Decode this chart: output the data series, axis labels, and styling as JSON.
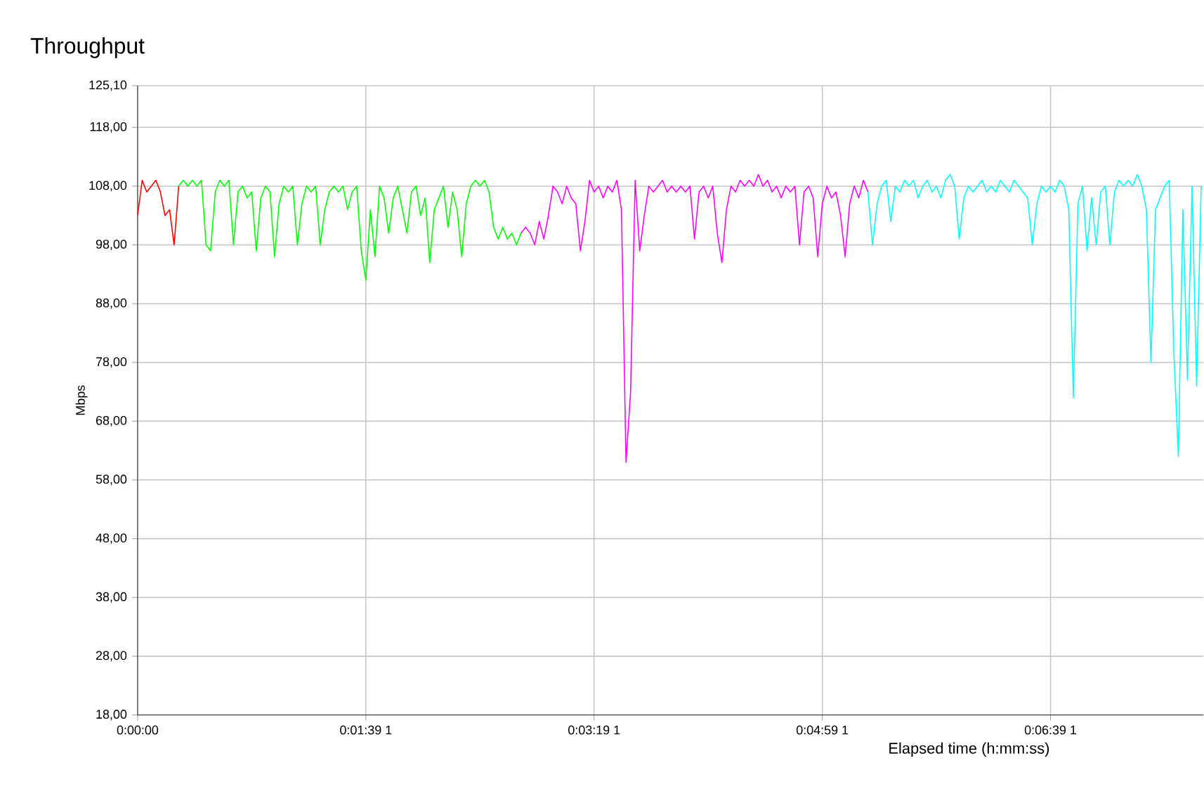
{
  "chart_data": {
    "type": "line",
    "title": "Throughput",
    "xlabel": "Elapsed time (h:mm:ss)",
    "ylabel": "Mbps",
    "categories": [
      "0:00:00",
      null,
      null,
      null,
      null,
      null,
      null,
      null,
      null,
      null,
      null,
      null,
      null,
      null,
      null,
      null,
      null,
      null,
      null,
      null,
      null,
      null,
      null,
      null,
      null,
      null,
      null,
      null,
      null,
      null,
      null,
      null,
      null,
      null,
      null,
      null,
      null,
      null,
      null,
      null,
      null,
      null,
      null,
      null,
      null,
      null,
      null,
      null,
      null,
      null,
      "0:01:39 1",
      null,
      null,
      null,
      null,
      null,
      null,
      null,
      null,
      null,
      null,
      null,
      null,
      null,
      null,
      null,
      null,
      null,
      null,
      null,
      null,
      null,
      null,
      null,
      null,
      null,
      null,
      null,
      null,
      null,
      null,
      null,
      null,
      null,
      null,
      null,
      null,
      null,
      null,
      null,
      null,
      null,
      null,
      null,
      null,
      null,
      null,
      null,
      null,
      null,
      "0:03:19 1",
      null,
      null,
      null,
      null,
      null,
      null,
      null,
      null,
      null,
      null,
      null,
      null,
      null,
      null,
      null,
      null,
      null,
      null,
      null,
      null,
      null,
      null,
      null,
      null,
      null,
      null,
      null,
      null,
      null,
      null,
      null,
      null,
      null,
      null,
      null,
      null,
      null,
      null,
      null,
      null,
      null,
      null,
      null,
      null,
      null,
      null,
      null,
      null,
      null,
      "0:04:59 1",
      null,
      null,
      null,
      null,
      null,
      null,
      null,
      null,
      null,
      null,
      null,
      null,
      null,
      null,
      null,
      null,
      null,
      null,
      null,
      null,
      null,
      null,
      null,
      null,
      null,
      null,
      null,
      null,
      null,
      null,
      null,
      null,
      null,
      null,
      null,
      null,
      null,
      null,
      null,
      null,
      null,
      null,
      null,
      null,
      null,
      null,
      null,
      null,
      null,
      "0:06:39 1",
      null,
      null,
      null,
      null,
      null,
      null,
      null,
      null,
      null,
      null,
      null,
      null,
      null,
      null,
      null,
      null,
      null,
      null,
      null,
      null,
      null,
      null,
      null,
      null,
      null,
      null,
      null,
      null,
      null,
      null,
      null,
      null,
      null
    ],
    "ylim": [
      18,
      125.1
    ],
    "yticks": [
      {
        "value": 18,
        "label": "18,00"
      },
      {
        "value": 28,
        "label": "28,00"
      },
      {
        "value": 38,
        "label": "38,00"
      },
      {
        "value": 48,
        "label": "48,00"
      },
      {
        "value": 58,
        "label": "58,00"
      },
      {
        "value": 68,
        "label": "68,00"
      },
      {
        "value": 78,
        "label": "78,00"
      },
      {
        "value": 88,
        "label": "88,00"
      },
      {
        "value": 98,
        "label": "98,00"
      },
      {
        "value": 108,
        "label": "108,00"
      },
      {
        "value": 118,
        "label": "118,00"
      },
      {
        "value": 125.1,
        "label": "125,10"
      }
    ],
    "grid": true,
    "series": [
      {
        "color": "#ff0000",
        "values": [
          103,
          109,
          107,
          108,
          109,
          107,
          103,
          104,
          98,
          108,
          null,
          null,
          null,
          null,
          null,
          null,
          null,
          null,
          null,
          null,
          null,
          null,
          null,
          null,
          null,
          null,
          null,
          null,
          null,
          null,
          null,
          null,
          null,
          null,
          null,
          null,
          null,
          null,
          null,
          null,
          null,
          null,
          null,
          null,
          null,
          null,
          null,
          null,
          null,
          null,
          null,
          null,
          null,
          null,
          null,
          null,
          null,
          null,
          null,
          null,
          null,
          null,
          null,
          null,
          null,
          null,
          null,
          null,
          null,
          null,
          null,
          null,
          null,
          null,
          null,
          null,
          null,
          null,
          null,
          null,
          null,
          null,
          null,
          null,
          null,
          null,
          null,
          null,
          null,
          null,
          null,
          null,
          null,
          null,
          null,
          null,
          null,
          null,
          null,
          null,
          null,
          null,
          null,
          null,
          null,
          null,
          null,
          null,
          null,
          null,
          null,
          null,
          null,
          null,
          null,
          null,
          null,
          null,
          null,
          null,
          null,
          null,
          null,
          null,
          null,
          null,
          null,
          null,
          null,
          null,
          null,
          null,
          null,
          null,
          null,
          null,
          null,
          null,
          null,
          null,
          null,
          null,
          null,
          null,
          null,
          null,
          null,
          null,
          null,
          null,
          null,
          null,
          null,
          null,
          null,
          null,
          null,
          null,
          null,
          null,
          null,
          null,
          null,
          null,
          null,
          null,
          null,
          null,
          null,
          null,
          null,
          null,
          null,
          null,
          null,
          null,
          null,
          null,
          null,
          null,
          null,
          null,
          null,
          null,
          null,
          null,
          null,
          null,
          null,
          null,
          null,
          null,
          null,
          null,
          null,
          null,
          null,
          null,
          null,
          null,
          null,
          null,
          null,
          null,
          null,
          null,
          null,
          null,
          null,
          null,
          null,
          null,
          null,
          null,
          null,
          null,
          null,
          null,
          null,
          null,
          null,
          null,
          null,
          null,
          null,
          null,
          null,
          null,
          null,
          null,
          null,
          null,
          null,
          null
        ]
      },
      {
        "color": "#00ff00",
        "values": [
          null,
          null,
          null,
          null,
          null,
          null,
          null,
          null,
          null,
          108,
          109,
          108,
          109,
          108,
          109,
          98,
          97,
          107,
          109,
          108,
          109,
          98,
          107,
          108,
          106,
          107,
          97,
          106,
          108,
          107,
          96,
          105,
          108,
          107,
          108,
          98,
          105,
          108,
          107,
          108,
          98,
          104,
          107,
          108,
          107,
          108,
          104,
          107,
          108,
          97,
          92,
          104,
          96,
          108,
          106,
          100,
          106,
          108,
          104,
          100,
          107,
          108,
          103,
          106,
          95,
          104,
          106,
          108,
          101,
          107,
          104,
          96,
          105,
          108,
          109,
          108,
          109,
          107,
          101,
          99,
          101,
          99,
          100,
          98,
          100,
          null,
          null,
          null,
          null,
          null,
          null,
          null,
          null,
          null,
          null,
          null,
          null,
          null,
          null,
          null,
          null,
          null,
          null,
          null,
          null,
          null,
          null,
          null,
          null,
          null,
          null,
          null,
          null,
          null,
          null,
          null,
          null,
          null,
          null,
          null,
          null,
          null,
          null,
          null,
          null,
          null,
          null,
          null,
          null,
          null,
          null,
          null,
          null,
          null,
          null,
          null,
          null,
          null,
          null,
          null,
          null,
          null,
          null,
          null,
          null,
          null,
          null,
          null,
          null,
          null,
          null,
          null,
          null,
          null,
          null,
          null,
          null,
          null,
          null,
          null,
          null,
          null,
          null,
          null,
          null,
          null,
          null,
          null,
          null,
          null,
          null,
          null,
          null,
          null,
          null,
          null,
          null,
          null,
          null,
          null,
          null,
          null,
          null,
          null,
          null,
          null,
          null,
          null,
          null,
          null,
          null,
          null,
          null,
          null,
          null,
          null,
          null,
          null,
          null,
          null,
          null,
          null,
          null,
          null,
          null,
          null,
          null,
          null,
          null,
          null,
          null,
          null,
          null,
          null,
          null,
          null,
          null,
          null,
          null,
          null,
          null,
          null,
          null,
          null,
          null,
          null,
          null,
          null,
          null,
          null,
          null,
          null,
          null,
          null
        ]
      },
      {
        "color": "#ff00ff",
        "values": [
          null,
          null,
          null,
          null,
          null,
          null,
          null,
          null,
          null,
          null,
          null,
          null,
          null,
          null,
          null,
          null,
          null,
          null,
          null,
          null,
          null,
          null,
          null,
          null,
          null,
          null,
          null,
          null,
          null,
          null,
          null,
          null,
          null,
          null,
          null,
          null,
          null,
          null,
          null,
          null,
          null,
          null,
          null,
          null,
          null,
          null,
          null,
          null,
          null,
          null,
          null,
          null,
          null,
          null,
          null,
          null,
          null,
          null,
          null,
          null,
          null,
          null,
          null,
          null,
          null,
          null,
          null,
          null,
          null,
          null,
          null,
          null,
          null,
          null,
          null,
          null,
          null,
          null,
          null,
          null,
          null,
          null,
          null,
          null,
          100,
          101,
          100,
          98,
          102,
          99,
          103,
          108,
          107,
          105,
          108,
          106,
          105,
          97,
          102,
          109,
          107,
          108,
          106,
          108,
          107,
          109,
          104,
          61,
          73,
          109,
          97,
          103,
          108,
          107,
          108,
          109,
          107,
          108,
          107,
          108,
          107,
          108,
          99,
          107,
          108,
          106,
          108,
          100,
          95,
          104,
          108,
          107,
          109,
          108,
          109,
          108,
          110,
          108,
          109,
          107,
          108,
          106,
          108,
          107,
          108,
          98,
          107,
          108,
          106,
          96,
          105,
          108,
          106,
          107,
          103,
          96,
          105,
          108,
          106,
          109,
          107,
          null,
          null,
          null,
          null,
          null,
          null,
          null,
          null,
          null,
          null,
          null,
          null,
          null,
          null,
          null,
          null,
          null,
          null,
          null,
          null,
          null,
          null,
          null,
          null,
          null,
          null,
          null,
          null,
          null,
          null,
          null,
          null,
          null,
          null,
          null,
          null,
          null,
          null,
          null,
          null,
          null,
          null,
          null,
          null,
          null,
          null,
          null,
          null,
          null,
          null,
          null,
          null,
          null,
          null,
          null,
          null,
          null,
          null,
          null,
          null,
          null,
          null,
          null,
          null,
          null,
          null,
          null,
          null,
          null,
          null,
          null,
          null,
          null
        ]
      },
      {
        "color": "#00ffff",
        "values": [
          null,
          null,
          null,
          null,
          null,
          null,
          null,
          null,
          null,
          null,
          null,
          null,
          null,
          null,
          null,
          null,
          null,
          null,
          null,
          null,
          null,
          null,
          null,
          null,
          null,
          null,
          null,
          null,
          null,
          null,
          null,
          null,
          null,
          null,
          null,
          null,
          null,
          null,
          null,
          null,
          null,
          null,
          null,
          null,
          null,
          null,
          null,
          null,
          null,
          null,
          null,
          null,
          null,
          null,
          null,
          null,
          null,
          null,
          null,
          null,
          null,
          null,
          null,
          null,
          null,
          null,
          null,
          null,
          null,
          null,
          null,
          null,
          null,
          null,
          null,
          null,
          null,
          null,
          null,
          null,
          null,
          null,
          null,
          null,
          null,
          null,
          null,
          null,
          null,
          null,
          null,
          null,
          null,
          null,
          null,
          null,
          null,
          null,
          null,
          null,
          null,
          null,
          null,
          null,
          null,
          null,
          null,
          null,
          null,
          null,
          null,
          null,
          null,
          null,
          null,
          null,
          null,
          null,
          null,
          null,
          null,
          null,
          null,
          null,
          null,
          null,
          null,
          null,
          null,
          null,
          null,
          null,
          null,
          null,
          null,
          null,
          null,
          null,
          null,
          null,
          null,
          null,
          null,
          null,
          null,
          null,
          null,
          null,
          null,
          null,
          null,
          null,
          null,
          null,
          null,
          null,
          null,
          null,
          null,
          null,
          107,
          98,
          105,
          108,
          109,
          102,
          108,
          107,
          109,
          108,
          109,
          106,
          108,
          109,
          107,
          108,
          106,
          109,
          110,
          108,
          99,
          106,
          108,
          107,
          108,
          109,
          107,
          108,
          107,
          109,
          108,
          107,
          109,
          108,
          107,
          106,
          98,
          105,
          108,
          107,
          108,
          107,
          109,
          108,
          104,
          72,
          105,
          108,
          97,
          106,
          98,
          107,
          108,
          98,
          107,
          109,
          108,
          109,
          108,
          110,
          108,
          104,
          78,
          104,
          106,
          108,
          109,
          80,
          62,
          104,
          75,
          108,
          74,
          108
        ]
      }
    ]
  }
}
